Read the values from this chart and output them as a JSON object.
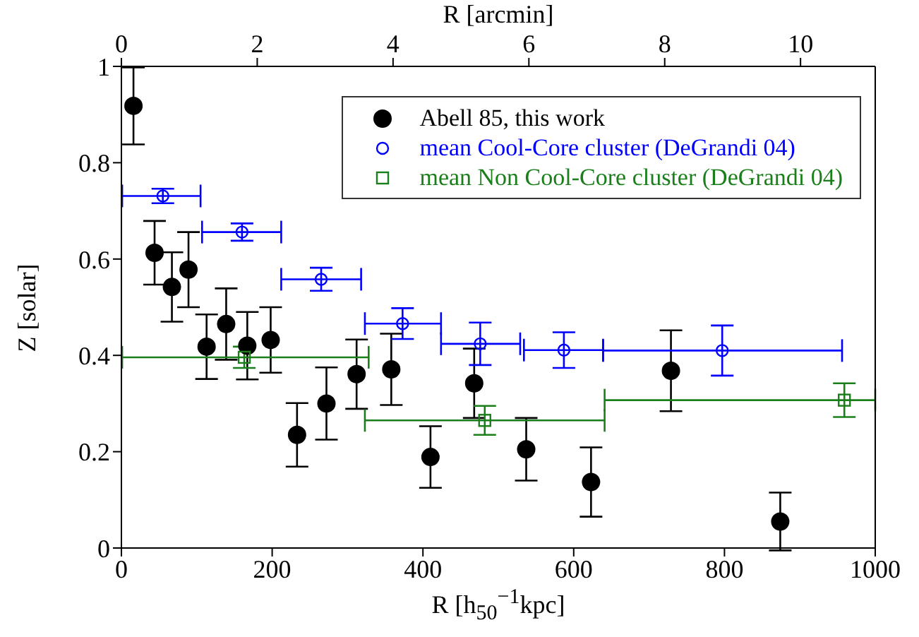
{
  "chart_data": {
    "type": "scatter",
    "xlabel": "R [h$_{50}$$^{−1}$kpc]",
    "ylabel": "Z [solar]",
    "x2label": "R [arcmin]",
    "xlim": [
      0,
      1000
    ],
    "xticks": [
      0,
      200,
      400,
      600,
      800,
      1000
    ],
    "ylim": [
      0,
      1
    ],
    "yticks": [
      0,
      0.2,
      0.4,
      0.6,
      0.8,
      1
    ],
    "x2lim": [
      0,
      11.1
    ],
    "x2ticks": [
      0,
      2,
      4,
      6,
      8,
      10
    ],
    "legend": "top right",
    "series": [
      {
        "name": "Abell 85, this work",
        "color": "#000000",
        "marker": "circle",
        "x": [
          16,
          44,
          67,
          89,
          113,
          139,
          167,
          198,
          233,
          272,
          312,
          358,
          410,
          468,
          537,
          623,
          729,
          874
        ],
        "values": [
          0.918,
          0.613,
          0.542,
          0.578,
          0.418,
          0.465,
          0.42,
          0.432,
          0.235,
          0.3,
          0.361,
          0.371,
          0.189,
          0.342,
          0.205,
          0.137,
          0.368,
          0.055
        ],
        "errors": [
          0.08,
          0.066,
          0.072,
          0.078,
          0.067,
          0.074,
          0.07,
          0.068,
          0.066,
          0.075,
          0.072,
          0.074,
          0.064,
          0.072,
          0.065,
          0.072,
          0.084,
          0.06
        ]
      },
      {
        "name": "mean Cool-Core cluster (DeGrandi 04)",
        "color": "#0000ff",
        "marker": "open-circle",
        "x": [
          55,
          160,
          265,
          373,
          476,
          587,
          797
        ],
        "values": [
          0.731,
          0.656,
          0.558,
          0.466,
          0.424,
          0.411,
          0.41
        ],
        "errors": [
          0.015,
          0.018,
          0.024,
          0.032,
          0.044,
          0.037,
          0.052
        ],
        "xerrors": [
          [
            1,
            105
          ],
          [
            107,
            212
          ],
          [
            212,
            318
          ],
          [
            323,
            424
          ],
          [
            424,
            529
          ],
          [
            534,
            639
          ],
          [
            639,
            956
          ]
        ]
      },
      {
        "name": "mean Non Cool-Core cluster (DeGrandi 04)",
        "color": "#1a7f1a",
        "marker": "square",
        "x": [
          163,
          482,
          959
        ],
        "values": [
          0.396,
          0.265,
          0.307
        ],
        "errors": [
          0.022,
          0.03,
          0.035
        ],
        "xerrors": [
          [
            1,
            328
          ],
          [
            323,
            641
          ],
          [
            641,
            1000
          ]
        ]
      }
    ]
  }
}
